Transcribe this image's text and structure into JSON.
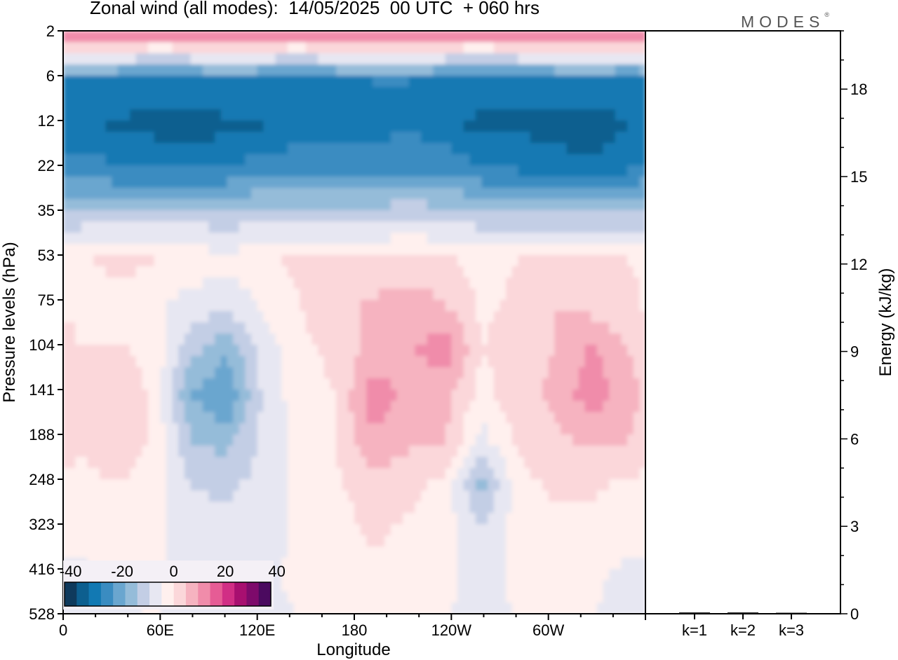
{
  "header": {
    "title": "Zonal wind (all modes):  14/05/2025  00 UTC  + 060 hrs",
    "brand": "MODES",
    "brand_mark": "®"
  },
  "chart_data": [
    {
      "type": "heatmap",
      "title": "Zonal wind (all modes):  14/05/2025  00 UTC  + 060 hrs",
      "xlabel": "Longitude",
      "ylabel": "Pressure levels (hPa)",
      "x_tick_labels": [
        "0",
        "60E",
        "120E",
        "180",
        "120W",
        "60W"
      ],
      "x_range_deg": [
        0,
        360
      ],
      "y_tick_labels": [
        "2",
        "6",
        "12",
        "22",
        "35",
        "53",
        "75",
        "104",
        "141",
        "188",
        "248",
        "323",
        "416",
        "528"
      ],
      "y_order": "top-to-bottom",
      "colorbar": {
        "tick_labels": [
          "-40",
          "-20",
          "0",
          "20",
          "40"
        ],
        "range": [
          -40,
          40
        ],
        "step": 5,
        "colors": [
          "#0f3a5c",
          "#0d5f8f",
          "#1279b3",
          "#3a8cc1",
          "#6aa6cf",
          "#95bcd9",
          "#c3cee5",
          "#e7e7f2",
          "#fff0ee",
          "#fbd7da",
          "#f6b3c0",
          "#f08caa",
          "#e65c95",
          "#d12e85",
          "#a80f70",
          "#7e0a6b",
          "#4b0a5f"
        ]
      },
      "field_rows": [
        {
          "level": "2",
          "values": [
            18,
            18,
            15,
            16,
            18,
            17,
            15,
            18,
            19,
            18,
            16,
            15,
            17,
            18,
            18,
            16
          ]
        },
        {
          "level": "6",
          "values": [
            -25,
            -26,
            -27,
            -26,
            -25,
            -26,
            -27,
            -26,
            -25,
            -25,
            -26,
            -27,
            -27,
            -26,
            -25,
            -26
          ]
        },
        {
          "level": "12",
          "values": [
            -28,
            -31,
            -32,
            -34,
            -31,
            -30,
            -28,
            -27,
            -27,
            -26,
            -28,
            -32,
            -31,
            -33,
            -35,
            -30
          ]
        },
        {
          "level": "22",
          "values": [
            -22,
            -24,
            -24,
            -25,
            -24,
            -22,
            -21,
            -22,
            -21,
            -20,
            -21,
            -24,
            -25,
            -26,
            -27,
            -25
          ]
        },
        {
          "level": "35",
          "values": [
            -8,
            -9,
            -8,
            -7,
            -8,
            -7,
            -7,
            -8,
            -7,
            -6,
            -7,
            -8,
            -9,
            -9,
            -10,
            -9
          ]
        },
        {
          "level": "53",
          "values": [
            4,
            7,
            5,
            3,
            2,
            4,
            6,
            5,
            6,
            7,
            6,
            3,
            5,
            6,
            6,
            5
          ]
        },
        {
          "level": "75",
          "values": [
            3,
            2,
            1,
            -2,
            -4,
            1,
            5,
            7,
            11,
            13,
            10,
            4,
            6,
            10,
            8,
            6
          ]
        },
        {
          "level": "104",
          "values": [
            5,
            6,
            3,
            -8,
            -14,
            -3,
            4,
            6,
            12,
            14,
            18,
            5,
            7,
            10,
            16,
            10
          ]
        },
        {
          "level": "141",
          "values": [
            6,
            9,
            4,
            -15,
            -20,
            -4,
            3,
            5,
            18,
            13,
            12,
            3,
            8,
            11,
            18,
            12
          ]
        },
        {
          "level": "188",
          "values": [
            6,
            10,
            4,
            -10,
            -12,
            -4,
            2,
            5,
            14,
            11,
            10,
            -2,
            6,
            9,
            11,
            10
          ]
        },
        {
          "level": "248",
          "values": [
            3,
            5,
            2,
            -5,
            -6,
            -3,
            2,
            4,
            8,
            7,
            3,
            -12,
            3,
            6,
            6,
            4
          ]
        },
        {
          "level": "323",
          "values": [
            2,
            3,
            1,
            -3,
            -4,
            -2,
            1,
            3,
            6,
            4,
            2,
            -5,
            2,
            4,
            3,
            2
          ]
        },
        {
          "level": "416",
          "values": [
            -1,
            1,
            1,
            -2,
            -3,
            -1,
            1,
            2,
            4,
            3,
            1,
            -2,
            1,
            2,
            1,
            -1
          ]
        },
        {
          "level": "528",
          "values": [
            -2,
            -1,
            0,
            -2,
            -2,
            -1,
            0,
            1,
            2,
            1,
            0,
            -1,
            0,
            1,
            0,
            -2
          ]
        }
      ]
    },
    {
      "type": "bar",
      "ylabel": "Energy (kJ/kg)",
      "categories": [
        "k=1",
        "k=2",
        "k=3"
      ],
      "values": [
        0.02,
        0.02,
        0.01
      ],
      "ylim": [
        0,
        20
      ],
      "y_tick_labels": [
        "0",
        "3",
        "6",
        "9",
        "12",
        "15",
        "18"
      ],
      "y_tick_values": [
        0,
        3,
        6,
        9,
        12,
        15,
        18
      ],
      "y_axis_side": "right"
    }
  ]
}
